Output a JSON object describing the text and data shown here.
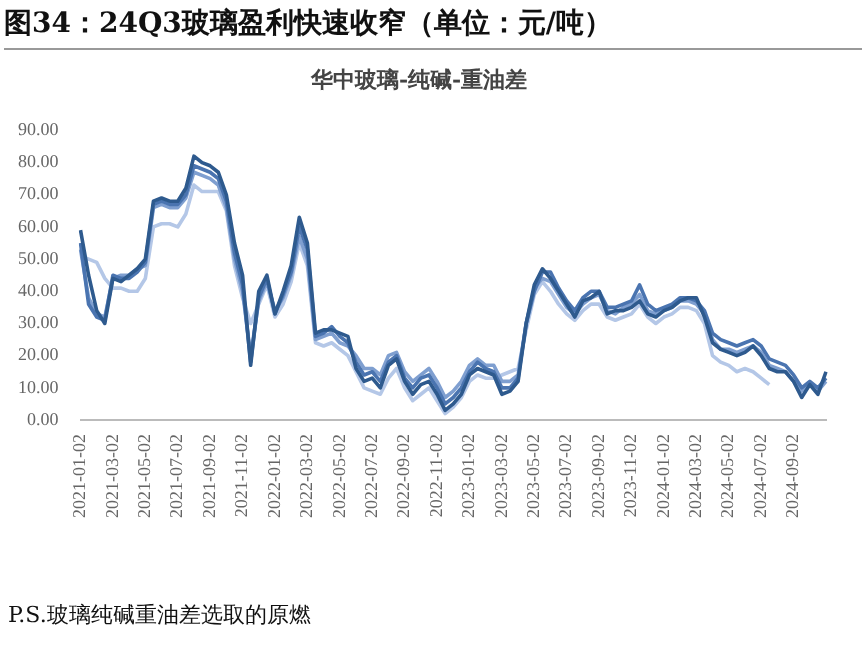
{
  "chart_data": {
    "type": "line",
    "title": "图34：24Q3玻璃盈利快速收窄（单位：元/吨）",
    "subtitle": "华中玻璃-纯碱-重油差",
    "categories": [
      "2021-01-02",
      null,
      null,
      null,
      "2021-03-02",
      null,
      null,
      null,
      "2021-05-02",
      null,
      null,
      null,
      "2021-07-02",
      null,
      null,
      null,
      "2021-09-02",
      null,
      null,
      null,
      "2021-11-02",
      null,
      null,
      null,
      "2022-01-02",
      null,
      null,
      null,
      "2022-03-02",
      null,
      null,
      null,
      "2022-05-02",
      null,
      null,
      null,
      "2022-07-02",
      null,
      null,
      null,
      "2022-09-02",
      null,
      null,
      null,
      "2022-11-02",
      null,
      null,
      null,
      "2023-01-02",
      null,
      null,
      null,
      "2023-03-02",
      null,
      null,
      null,
      "2023-05-02",
      null,
      null,
      null,
      "2023-07-02",
      null,
      null,
      null,
      "2023-09-02",
      null,
      null,
      null,
      "2023-11-02",
      null,
      null,
      null,
      "2024-01-02",
      null,
      null,
      null,
      "2024-03-02",
      null,
      null,
      null,
      "2024-05-02",
      null,
      null,
      null,
      "2024-07-02",
      null,
      null,
      null,
      "2024-09-02",
      null,
      null,
      null,
      null
    ],
    "series": [
      {
        "color": "#2e5a8e",
        "values": [
          59,
          45,
          34,
          30,
          44,
          43,
          45,
          47,
          50,
          68,
          69,
          68,
          68,
          72,
          82,
          80,
          79,
          77,
          70,
          55,
          45,
          17,
          40,
          45,
          33,
          40,
          48,
          63,
          55,
          27,
          28,
          28,
          27,
          26,
          16,
          12,
          13,
          10,
          17,
          19,
          12,
          8,
          11,
          12,
          8,
          3,
          5,
          8,
          14,
          16,
          15,
          14,
          8,
          9,
          12,
          30,
          42,
          47,
          44,
          40,
          36,
          32,
          37,
          38,
          40,
          33,
          34,
          34,
          35,
          37,
          33,
          32,
          34,
          35,
          37,
          38,
          38,
          32,
          24,
          22,
          21,
          20,
          21,
          23,
          20,
          16,
          15,
          15,
          12,
          7,
          11,
          8,
          15
        ]
      },
      {
        "color": "#4a74b0",
        "values": [
          55,
          36,
          32,
          31,
          45,
          44,
          44,
          46,
          49,
          67,
          68,
          67,
          67,
          70,
          79,
          78,
          77,
          75,
          68,
          52,
          42,
          18,
          38,
          44,
          33,
          39,
          46,
          60,
          53,
          26,
          27,
          29,
          26,
          24,
          18,
          14,
          15,
          12,
          18,
          20,
          13,
          10,
          13,
          14,
          10,
          5,
          7,
          10,
          15,
          18,
          16,
          15,
          10,
          10,
          13,
          30,
          40,
          46,
          46,
          41,
          37,
          34,
          38,
          40,
          40,
          35,
          35,
          36,
          37,
          42,
          36,
          34,
          35,
          36,
          38,
          38,
          37,
          34,
          27,
          25,
          24,
          23,
          24,
          25,
          23,
          19,
          18,
          17,
          14,
          10,
          12,
          10,
          13
        ]
      },
      {
        "color": "#7f9fd0",
        "values": [
          53,
          38,
          33,
          32,
          44,
          45,
          45,
          47,
          48,
          66,
          67,
          66,
          66,
          69,
          77,
          76,
          75,
          73,
          66,
          50,
          40,
          20,
          37,
          43,
          34,
          38,
          45,
          57,
          50,
          25,
          26,
          27,
          24,
          23,
          20,
          16,
          16,
          14,
          20,
          21,
          15,
          12,
          14,
          16,
          12,
          7,
          9,
          12,
          17,
          19,
          17,
          17,
          12,
          12,
          14,
          30,
          41,
          44,
          43,
          39,
          35,
          33,
          36,
          38,
          39,
          34,
          33,
          35,
          36,
          39,
          34,
          33,
          34,
          35,
          37,
          37,
          36,
          33,
          25,
          22,
          22,
          21,
          22,
          23,
          21,
          17,
          16,
          15,
          12,
          9,
          11,
          9,
          12
        ]
      },
      {
        "color": "#b4c7e7",
        "values": [
          51,
          50,
          49,
          44,
          41,
          41,
          40,
          40,
          44,
          60,
          61,
          61,
          60,
          64,
          73,
          71,
          71,
          71,
          65,
          48,
          38,
          30,
          36,
          42,
          32,
          36,
          43,
          55,
          48,
          24,
          23,
          24,
          22,
          20,
          15,
          10,
          9,
          8,
          13,
          16,
          10,
          6,
          8,
          10,
          6,
          2,
          4,
          7,
          12,
          14,
          13,
          13,
          14,
          15,
          16,
          28,
          39,
          43,
          40,
          36,
          33,
          31,
          34,
          36,
          36,
          32,
          31,
          32,
          33,
          36,
          32,
          30,
          32,
          33,
          35,
          35,
          34,
          30,
          20,
          18,
          17,
          15,
          16,
          15,
          13,
          11,
          null,
          null,
          null,
          null,
          null,
          null,
          null
        ]
      }
    ],
    "ylim": [
      0,
      90
    ],
    "yticks": [
      {
        "value": 0,
        "label": "0.00"
      },
      {
        "value": 10,
        "label": "10.00"
      },
      {
        "value": 20,
        "label": "20.00"
      },
      {
        "value": 30,
        "label": "30.00"
      },
      {
        "value": 40,
        "label": "40.00"
      },
      {
        "value": 50,
        "label": "50.00"
      },
      {
        "value": 60,
        "label": "60.00"
      },
      {
        "value": 70,
        "label": "70.00"
      },
      {
        "value": 80,
        "label": "80.00"
      },
      {
        "value": 90,
        "label": "90.00"
      }
    ],
    "grid": false,
    "legend": false,
    "marker": "none",
    "line_style": "solid",
    "annotations": [
      "P.S.玻璃纯碱重油差选取的原燃"
    ]
  }
}
